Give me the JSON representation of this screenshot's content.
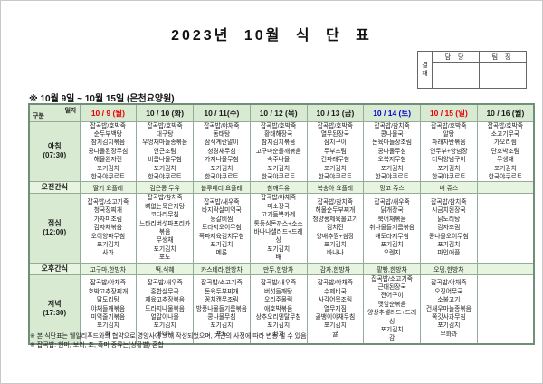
{
  "title": "2023년 10월 식 단 표",
  "approval": {
    "stamp_label": "결\n재",
    "columns": [
      "담 당",
      "팀 장"
    ]
  },
  "subtitle": "※ 10월 9일 ~ 10월 15일 (은천요양원)",
  "corner": {
    "top_right": "일자",
    "bottom_left": "구분"
  },
  "row_headers": {
    "breakfast": {
      "label": "아침",
      "time": "(07:30)"
    },
    "am_snack": {
      "label": "오전간식",
      "time": ""
    },
    "lunch": {
      "label": "점심",
      "time": "(12:00)"
    },
    "pm_snack": {
      "label": "오후간식",
      "time": ""
    },
    "dinner": {
      "label": "저녁",
      "time": "(17:30)"
    }
  },
  "colors": {
    "red": "#e60000",
    "blue": "#0000cc",
    "black": "#1a1a1a",
    "header_bg": "#d9ead3",
    "snack_bg": "#e7f4e0",
    "border": "#93ab97"
  },
  "columns": [
    {
      "date": "10 / 9 (월)",
      "color": "red",
      "breakfast": [
        "잡곡밥/호박죽",
        "순두부백탕",
        "참치김치볶음",
        "콩나물된장무침",
        "해물완자전",
        "포기김치",
        "한국야쿠르트"
      ],
      "am_snack": "딸기 요플레",
      "lunch": [
        "잡곡밥/소고기죽",
        "청국장찌개",
        "가자미조림",
        "감자채볶음",
        "오이양파무침",
        "포기김치",
        "사과"
      ],
      "pm_snack": "고구마,한방차",
      "dinner": [
        "잡곡밥/야채죽",
        "호박고추장찌개",
        "닭도리탕",
        "야채들깨볶음",
        "미역줄기볶음",
        "포기김치",
        "배"
      ]
    },
    {
      "date": "10 / 10 (화)",
      "color": "black",
      "breakfast": [
        "잡곡밥/호박죽",
        "대구탕",
        "우엉채마늘종볶음",
        "연근조림",
        "비름나물무침",
        "포기김치",
        "한국야쿠르트"
      ],
      "am_snack": "검은콩 두유",
      "lunch": [
        "잡곡밥/참치죽",
        "뼈없는묵은지탕",
        "코다리무침",
        "느타리버섯파프리카볶음",
        "무생채",
        "포기김치",
        "포도"
      ],
      "pm_snack": "떡,식혜",
      "dinner": [
        "잡곡밥/새우죽",
        "홍합살무국",
        "제육고추장볶음",
        "도라지나물볶음",
        "얼갈이나물",
        "포기김치",
        "바나나"
      ]
    },
    {
      "date": "10 / 11(수)",
      "color": "black",
      "breakfast": [
        "잡곡밥/야채죽",
        "동태탕",
        "삼색계란말이",
        "청경채무침",
        "가지나물무침",
        "포기김치",
        "한국야쿠르트"
      ],
      "am_snack": "블루베리 요플레",
      "lunch": [
        "잡곡밥/새우죽",
        "바지락살미역국",
        "등갈비찜",
        "도라지오이무침",
        "쪽파제육김치무침",
        "포기김치",
        "메론"
      ],
      "pm_snack": "카스테라,한방차",
      "dinner": [
        "잡곡밥/소고기죽",
        "돈육두부찌개",
        "꽁치캔무조림",
        "방풍나물들기름볶음",
        "콩나물무침",
        "포기김치",
        "포도"
      ]
    },
    {
      "date": "10 / 12 (목)",
      "color": "black",
      "breakfast": [
        "잡곡밥/호박죽",
        "황태해장국",
        "참치김치볶음",
        "고구마순들깨볶음",
        "숙주나물",
        "포기김치",
        "한국야쿠르트"
      ],
      "am_snack": "참깨두유",
      "lunch": [
        "잡곡밥/야채죽",
        "미소장국",
        "고기듬뿍카레",
        "통등심돈까스+소스",
        "바나나샐러드+드레싱",
        "포기김치",
        "배"
      ],
      "pm_snack": "만두,한방차",
      "dinner": [
        "잡곡밥/새우죽",
        "버섯들깨탕",
        "오리주물럭",
        "애호박볶음",
        "상추오리엔탈무침",
        "포기김치",
        "사과"
      ]
    },
    {
      "date": "10 / 13 (금)",
      "color": "black",
      "breakfast": [
        "잡곡밥/호박죽",
        "열무된장국",
        "삼치구이",
        "두부조림",
        "건파래무침",
        "포기김치",
        "한국야쿠르트"
      ],
      "am_snack": "복숭아 요플레",
      "lunch": [
        "잡곡밥/참치죽",
        "해물순두부찌개",
        "청양풍제육불고기",
        "김치전",
        "양배추찜+쌈장",
        "포기김치",
        "바나나"
      ],
      "pm_snack": "감자,한방차",
      "dinner": [
        "잡곡밥/야채죽",
        "수제비국",
        "사각어묵조림",
        "열무지짐",
        "골뱅이야채무침",
        "포기김치",
        "귤"
      ]
    },
    {
      "date": "10 / 14 (토)",
      "color": "blue",
      "breakfast": [
        "잡곡밥/참치죽",
        "콩나물국",
        "돈육마늘장조림",
        "콩나물무침",
        "오복지무침",
        "포기김치",
        "한국야쿠르트"
      ],
      "am_snack": "망고 쥬스",
      "lunch": [
        "잡곡밥/새우죽",
        "닭개장국",
        "북어채볶음",
        "취나물들기름볶음",
        "배도라지무침",
        "포기김치",
        "오렌지"
      ],
      "pm_snack": "팥빵,한방차",
      "dinner": [
        "잡곡밥/소고기죽",
        "근대된장국",
        "전어구이",
        "깻잎순볶음",
        "양상추샐러드+드레싱",
        "포기김치",
        "감"
      ]
    },
    {
      "date": "10 / 15 (일)",
      "color": "red",
      "breakfast": [
        "잡곡밥/호박죽",
        "알탕",
        "파래자반볶음",
        "연두부+양념장",
        "더덕양념구이",
        "포기김치",
        "한국야쿠르트"
      ],
      "am_snack": "배 쥬스",
      "lunch": [
        "잡곡밥/참치죽",
        "시금치된장국",
        "닭도리탕",
        "감자조림",
        "콩나물오이무침",
        "포기김치",
        "파인애플"
      ],
      "pm_snack": "오뎅,한방차",
      "dinner": [
        "잡곡밥/야채죽",
        "오징어무국",
        "소불고기",
        "건새우마늘종볶음",
        "쪽갓사과무침",
        "포기김치",
        "무화과"
      ]
    },
    {
      "date": "10 / 16 (월)",
      "color": "black",
      "breakfast": [
        "잡곡밥/호박죽",
        "소고기무국",
        "가오리찜",
        "단호박조림",
        "무생채",
        "포기김치",
        "한국야쿠르트"
      ],
      "am_snack": "",
      "lunch": [],
      "pm_snack": "",
      "dinner": []
    }
  ],
  "footnotes": [
    "※ 본 식단표는 웰일리푸드와의 협약으로 영양사에 의해 작성되었으며, 기관의 사정에 따라 변동 될 수 있음",
    "※ 잡곡밥: 현미, 보리, 조, 흑미 종류는(상황별) 혼합"
  ]
}
